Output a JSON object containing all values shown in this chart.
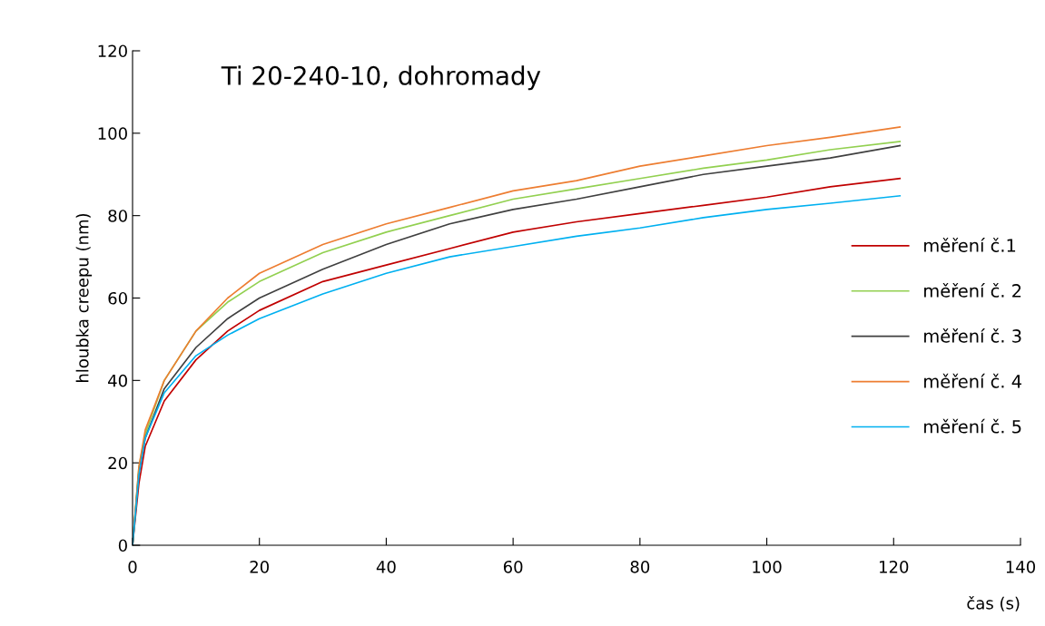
{
  "chart_data": {
    "type": "line",
    "title": "Ti 20-240-10, dohromady",
    "xlabel": "čas (s)",
    "ylabel": "hloubka creepu (nm)",
    "x": [
      0,
      1,
      2,
      5,
      10,
      15,
      20,
      30,
      40,
      50,
      60,
      70,
      80,
      90,
      100,
      110,
      121
    ],
    "xlim": [
      0,
      140
    ],
    "xticks": [
      0,
      20,
      40,
      60,
      80,
      100,
      120,
      140
    ],
    "ylim": [
      0,
      120
    ],
    "yticks": [
      0,
      20,
      40,
      60,
      80,
      100,
      120
    ],
    "grid": false,
    "legend": "right",
    "marker": "none",
    "line_style": "solid",
    "series": [
      {
        "name": "měření č.1",
        "color": "#c00000",
        "values": [
          0,
          15,
          24,
          35,
          45,
          52,
          57,
          64,
          68,
          72,
          76,
          78.5,
          80.5,
          82.5,
          84.5,
          87,
          89
        ]
      },
      {
        "name": "měření č. 2",
        "color": "#92d050",
        "values": [
          0,
          19,
          27,
          40,
          52,
          59,
          64,
          71,
          76,
          80,
          84,
          86.5,
          89,
          91.5,
          93.5,
          96,
          98
        ]
      },
      {
        "name": "měření č. 3",
        "color": "#404040",
        "values": [
          0,
          18,
          26,
          38,
          48,
          55,
          60,
          67,
          73,
          78,
          81.5,
          84,
          87,
          90,
          92,
          94,
          97
        ]
      },
      {
        "name": "měření č. 4",
        "color": "#ed7d31",
        "values": [
          0,
          19,
          28,
          40,
          52,
          60,
          66,
          73,
          78,
          82,
          86,
          88.5,
          92,
          94.5,
          97,
          99,
          101.5
        ]
      },
      {
        "name": "měření č. 5",
        "color": "#00b0f0",
        "values": [
          0,
          17,
          26,
          37,
          46,
          51,
          55,
          61,
          66,
          70,
          72.5,
          75,
          77,
          79.5,
          81.5,
          83,
          84.8
        ]
      }
    ]
  }
}
